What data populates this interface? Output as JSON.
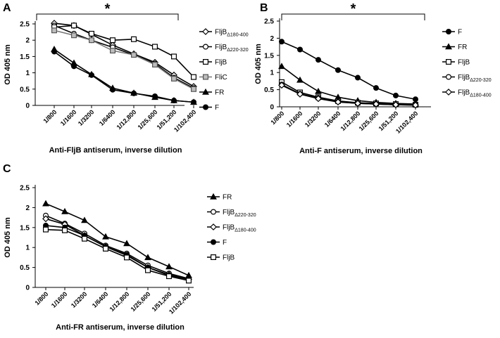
{
  "chart_data": [
    {
      "panel": "A",
      "type": "line",
      "categories": [
        "1/800",
        "1/1600",
        "1/3200",
        "1/6400",
        "1/12,800",
        "1/25,600",
        "1/51,200",
        "1/102,400"
      ],
      "ylabel": "OD 405 nm",
      "xlabel": "Anti-FljB antiserum, inverse dilution",
      "ylim": [
        0,
        2.5
      ],
      "yticks": [
        "0",
        "0.5",
        "1",
        "1.5",
        "2",
        "2.5"
      ],
      "significance": "*",
      "series": [
        {
          "name": "FljBΔ180-400",
          "name_main": "FljB",
          "name_sub": "Δ180-400",
          "marker": "diamond",
          "values": [
            2.52,
            2.45,
            2.18,
            1.85,
            1.58,
            1.32,
            0.93,
            0.58
          ]
        },
        {
          "name": "FljBΔ220-320",
          "name_main": "FljB",
          "name_sub": "Δ220-320",
          "marker": "circle-open",
          "values": [
            2.45,
            2.2,
            2.0,
            1.78,
            1.55,
            1.28,
            0.85,
            0.53
          ]
        },
        {
          "name": "FljB",
          "name_main": "FljB",
          "name_sub": "",
          "marker": "square-open",
          "values": [
            2.4,
            2.45,
            2.2,
            2.0,
            2.03,
            1.8,
            1.5,
            0.87
          ]
        },
        {
          "name": "FliC",
          "name_main": "FliC",
          "name_sub": "",
          "marker": "square-gray",
          "values": [
            2.3,
            2.15,
            2.0,
            1.68,
            1.55,
            1.25,
            0.82,
            0.5
          ]
        },
        {
          "name": "FR",
          "name_main": "FR",
          "name_sub": "",
          "marker": "triangle",
          "values": [
            1.72,
            1.3,
            0.95,
            0.53,
            0.38,
            0.25,
            0.15,
            0.1
          ]
        },
        {
          "name": "F",
          "name_main": "F",
          "name_sub": "",
          "marker": "circle-filled",
          "values": [
            1.65,
            1.2,
            0.93,
            0.48,
            0.37,
            0.28,
            0.15,
            0.1
          ]
        }
      ]
    },
    {
      "panel": "B",
      "type": "line",
      "categories": [
        "1/800",
        "1/1600",
        "1/3200",
        "1/6400",
        "1/12,800",
        "1/25,600",
        "1/51,200",
        "1/102,400"
      ],
      "ylabel": "OD 405 nm",
      "xlabel": "Anti-F antiserum, inverse dilution",
      "ylim": [
        0,
        2.5
      ],
      "yticks": [
        "0",
        "0.5",
        "1",
        "1.5",
        "2",
        "2.5"
      ],
      "significance": "*",
      "series": [
        {
          "name": "F",
          "name_main": "F",
          "name_sub": "",
          "marker": "circle-filled",
          "values": [
            1.9,
            1.67,
            1.37,
            1.07,
            0.85,
            0.55,
            0.33,
            0.22
          ]
        },
        {
          "name": "FR",
          "name_main": "FR",
          "name_sub": "",
          "marker": "triangle",
          "values": [
            1.18,
            0.78,
            0.45,
            0.28,
            0.18,
            0.13,
            0.1,
            0.08
          ]
        },
        {
          "name": "FljB",
          "name_main": "FljB",
          "name_sub": "",
          "marker": "square-open",
          "values": [
            0.72,
            0.42,
            0.28,
            0.17,
            0.12,
            0.1,
            0.08,
            0.06
          ]
        },
        {
          "name": "FljBΔ220-320",
          "name_main": "FljB",
          "name_sub": "Δ220-320",
          "marker": "circle-open",
          "values": [
            0.65,
            0.38,
            0.25,
            0.15,
            0.1,
            0.08,
            0.06,
            0.05
          ]
        },
        {
          "name": "FljBΔ180-400",
          "name_main": "FljB",
          "name_sub": "Δ180-400",
          "marker": "diamond",
          "values": [
            0.63,
            0.37,
            0.24,
            0.14,
            0.1,
            0.08,
            0.06,
            0.05
          ]
        }
      ]
    },
    {
      "panel": "C",
      "type": "line",
      "categories": [
        "1/800",
        "1/1600",
        "1/3200",
        "1/6400",
        "1/12,800",
        "1/25,600",
        "1/51,200",
        "1/102,400"
      ],
      "ylabel": "OD 405 nm",
      "xlabel": "Anti-FR antiserum, inverse dilution",
      "ylim": [
        0,
        2.5
      ],
      "yticks": [
        "0",
        "0.5",
        "1",
        "1.5",
        "2",
        "2.5"
      ],
      "significance": "",
      "series": [
        {
          "name": "FR",
          "name_main": "FR",
          "name_sub": "",
          "marker": "triangle",
          "values": [
            2.1,
            1.9,
            1.68,
            1.27,
            1.1,
            0.75,
            0.52,
            0.3
          ]
        },
        {
          "name": "FljBΔ220-320",
          "name_main": "FljB",
          "name_sub": "Δ220-320",
          "marker": "circle-open",
          "values": [
            1.8,
            1.6,
            1.35,
            1.05,
            0.85,
            0.55,
            0.35,
            0.22
          ]
        },
        {
          "name": "FljBΔ180-400",
          "name_main": "FljB",
          "name_sub": "Δ180-400",
          "marker": "diamond",
          "values": [
            1.72,
            1.58,
            1.3,
            1.02,
            0.8,
            0.5,
            0.32,
            0.2
          ]
        },
        {
          "name": "F",
          "name_main": "F",
          "name_sub": "",
          "marker": "circle-filled",
          "values": [
            1.55,
            1.5,
            1.3,
            1.02,
            0.82,
            0.5,
            0.3,
            0.2
          ]
        },
        {
          "name": "FljB",
          "name_main": "FljB",
          "name_sub": "",
          "marker": "square-open",
          "values": [
            1.45,
            1.43,
            1.22,
            0.97,
            0.75,
            0.43,
            0.28,
            0.17
          ]
        }
      ]
    }
  ]
}
